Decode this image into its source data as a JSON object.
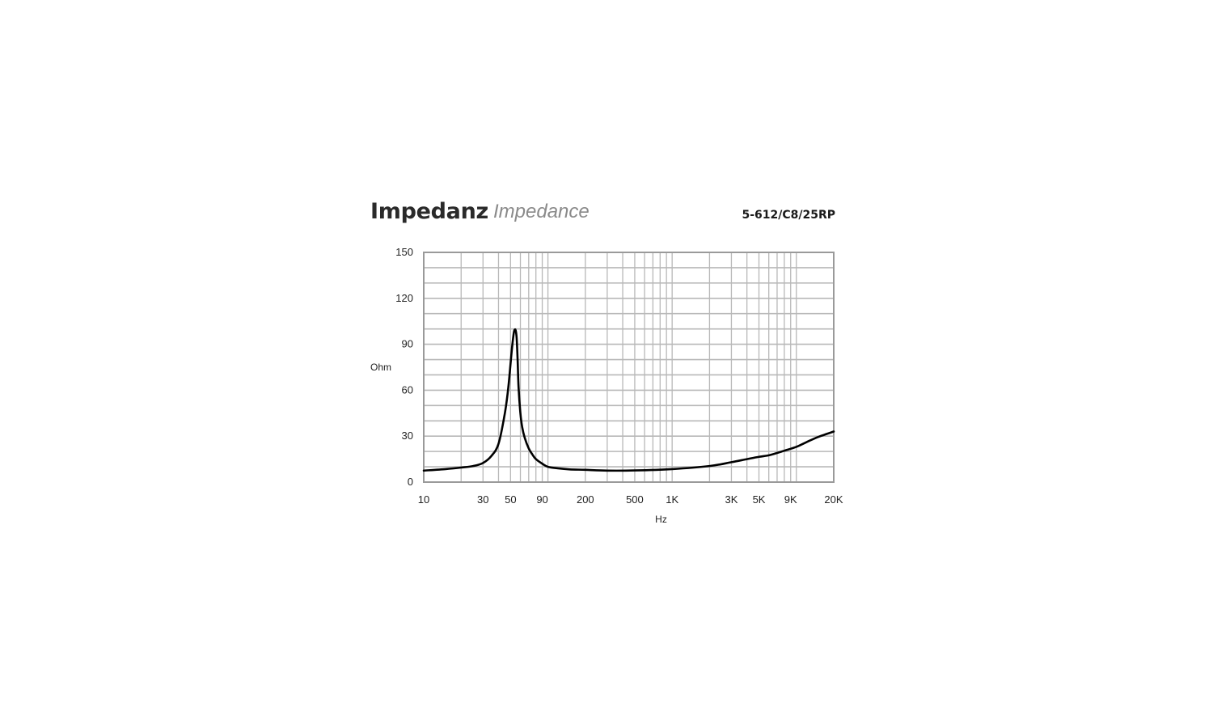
{
  "header": {
    "title_de": "Impedanz",
    "title_en": "Impedance",
    "model": "5-612/C8/25RP"
  },
  "chart_data": {
    "type": "line",
    "xlabel": "Hz",
    "ylabel": "Ohm",
    "xscale": "log",
    "xlim": [
      10,
      20000
    ],
    "ylim": [
      0,
      150
    ],
    "grid": true,
    "x_tick_labels": [
      "10",
      "30",
      "50",
      "90",
      "200",
      "500",
      "1K",
      "3K",
      "5K",
      "9K",
      "20K"
    ],
    "x_tick_values": [
      10,
      30,
      50,
      90,
      200,
      500,
      1000,
      3000,
      5000,
      9000,
      20000
    ],
    "y_ticks": [
      0,
      30,
      60,
      90,
      120,
      150
    ],
    "series": [
      {
        "color": "#000000",
        "x": [
          10,
          15,
          20,
          25,
          30,
          35,
          40,
          45,
          48,
          51,
          53,
          54,
          55,
          56,
          57,
          58,
          60,
          62,
          65,
          70,
          75,
          80,
          90,
          100,
          120,
          150,
          200,
          300,
          500,
          1000,
          2000,
          3000,
          4000,
          5000,
          6000,
          7000,
          8000,
          10000,
          12000,
          15000,
          20000
        ],
        "y": [
          7.5,
          8.5,
          9.5,
          10.5,
          12.5,
          17,
          25,
          45,
          62,
          85,
          97,
          99.5,
          99,
          94,
          80,
          62,
          45,
          36,
          29,
          22,
          18,
          15,
          12,
          10,
          9,
          8.3,
          8,
          7.5,
          7.6,
          8.5,
          10.5,
          13,
          15,
          16.5,
          17.5,
          19,
          20.5,
          23,
          26,
          29.5,
          33
        ]
      }
    ]
  }
}
